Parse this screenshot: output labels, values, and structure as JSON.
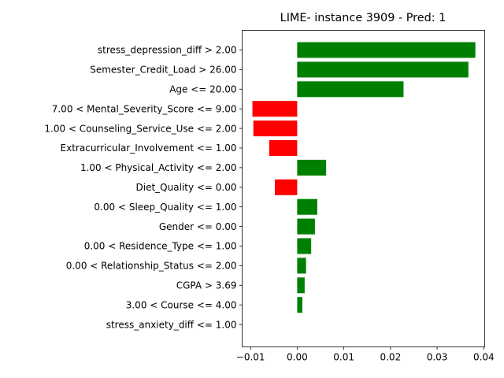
{
  "chart_data": {
    "type": "bar",
    "orientation": "horizontal",
    "title": "LIME- instance 3909 - Pred: 1",
    "xlabel": "",
    "ylabel": "",
    "xlim": [
      -0.0118,
      0.0402
    ],
    "xticks": [
      -0.01,
      0.0,
      0.01,
      0.02,
      0.03,
      0.04
    ],
    "xtick_labels": [
      "−0.01",
      "0.00",
      "0.01",
      "0.02",
      "0.03",
      "0.04"
    ],
    "grid": false,
    "colors": {
      "positive": "#008000",
      "negative": "#ff0000"
    },
    "categories": [
      "stress_depression_diff > 2.00",
      "Semester_Credit_Load > 26.00",
      "Age <= 20.00",
      "7.00 < Mental_Severity_Score <= 9.00",
      "1.00 < Counseling_Service_Use <= 2.00",
      "Extracurricular_Involvement <= 1.00",
      "1.00 < Physical_Activity <= 2.00",
      "Diet_Quality <= 0.00",
      "0.00 < Sleep_Quality <= 1.00",
      "Gender <= 0.00",
      "0.00 < Residence_Type <= 1.00",
      "0.00 < Relationship_Status <= 2.00",
      "CGPA > 3.69",
      "3.00 < Course <= 4.00",
      "stress_anxiety_diff <= 1.00"
    ],
    "values": [
      0.0382,
      0.0367,
      0.0228,
      -0.0096,
      -0.0094,
      -0.006,
      0.0062,
      -0.0048,
      0.0043,
      0.0038,
      0.003,
      0.0019,
      0.0016,
      0.0011,
      0.0
    ]
  }
}
